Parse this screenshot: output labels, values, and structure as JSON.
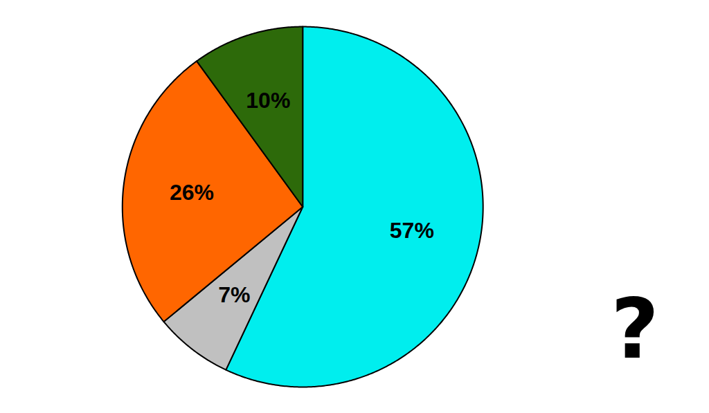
{
  "chart_data": {
    "type": "pie",
    "values": [
      57,
      7,
      26,
      10
    ],
    "value_labels": [
      "57%",
      "7%",
      "26%",
      "10%"
    ],
    "colors": [
      "#00EEEE",
      "#C0C0C0",
      "#FF6600",
      "#2D6A0A"
    ],
    "data_labels": true,
    "annotations": [
      "?"
    ]
  }
}
